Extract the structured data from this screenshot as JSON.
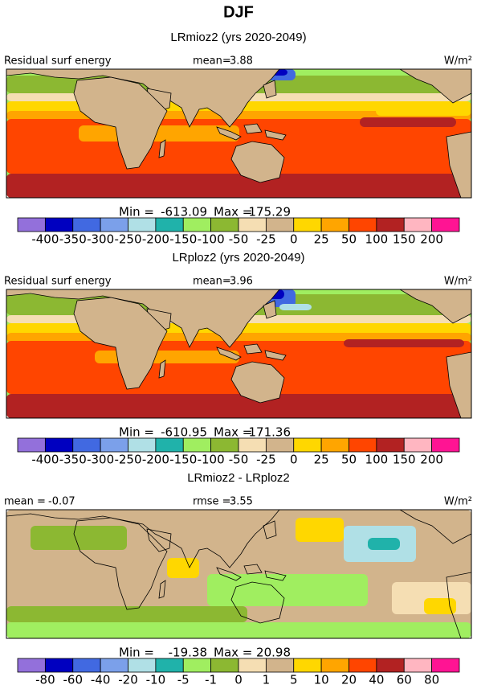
{
  "title": "DJF",
  "panels": [
    {
      "title": "LRmioz2 (yrs 2020-2049)",
      "left_text": "Residual surf energy",
      "center_text": "mean=",
      "center_value": 3.88,
      "units": "W/m²",
      "min_label": "Min =",
      "min": -613.09,
      "max_label": "Max =",
      "max": 175.29,
      "colorbar": {
        "colors": [
          "#9370db",
          "#0000c0",
          "#4169e1",
          "#7ba0ea",
          "#b0e0e6",
          "#20b2aa",
          "#a0ee60",
          "#8cb832",
          "#f5deb3",
          "#d2b48c",
          "#ffd700",
          "#ffa500",
          "#ff4500",
          "#b22222",
          "#ffb6c1",
          "#ff1493"
        ],
        "ticks": [
          -400,
          -350,
          -300,
          -250,
          -200,
          -150,
          -100,
          -50,
          -25,
          0,
          25,
          50,
          100,
          150,
          200
        ]
      }
    },
    {
      "title": "LRploz2 (yrs 2020-2049)",
      "left_text": "Residual surf energy",
      "center_text": "mean=",
      "center_value": 3.96,
      "units": "W/m²",
      "min_label": "Min =",
      "min": -610.95,
      "max_label": "Max =",
      "max": 171.36,
      "colorbar": {
        "colors": [
          "#9370db",
          "#0000c0",
          "#4169e1",
          "#7ba0ea",
          "#b0e0e6",
          "#20b2aa",
          "#a0ee60",
          "#8cb832",
          "#f5deb3",
          "#d2b48c",
          "#ffd700",
          "#ffa500",
          "#ff4500",
          "#b22222",
          "#ffb6c1",
          "#ff1493"
        ],
        "ticks": [
          -400,
          -350,
          -300,
          -250,
          -200,
          -150,
          -100,
          -50,
          -25,
          0,
          25,
          50,
          100,
          150,
          200
        ]
      }
    },
    {
      "title": "LRmioz2 - LRploz2",
      "left_text": "mean =",
      "left_value": -0.07,
      "center_text": "rmse =",
      "center_value": 3.55,
      "units": "W/m²",
      "min_label": "Min =",
      "min": -19.38,
      "max_label": "Max =",
      "max": 20.98,
      "colorbar": {
        "colors": [
          "#9370db",
          "#0000c0",
          "#4169e1",
          "#7ba0ea",
          "#b0e0e6",
          "#20b2aa",
          "#a0ee60",
          "#8cb832",
          "#f5deb3",
          "#d2b48c",
          "#ffd700",
          "#ffa500",
          "#ff4500",
          "#b22222",
          "#ffb6c1",
          "#ff1493"
        ],
        "ticks": [
          -80,
          -60,
          -40,
          -20,
          -10,
          -5,
          -1,
          0,
          1,
          5,
          10,
          20,
          40,
          60,
          80
        ]
      }
    }
  ]
}
